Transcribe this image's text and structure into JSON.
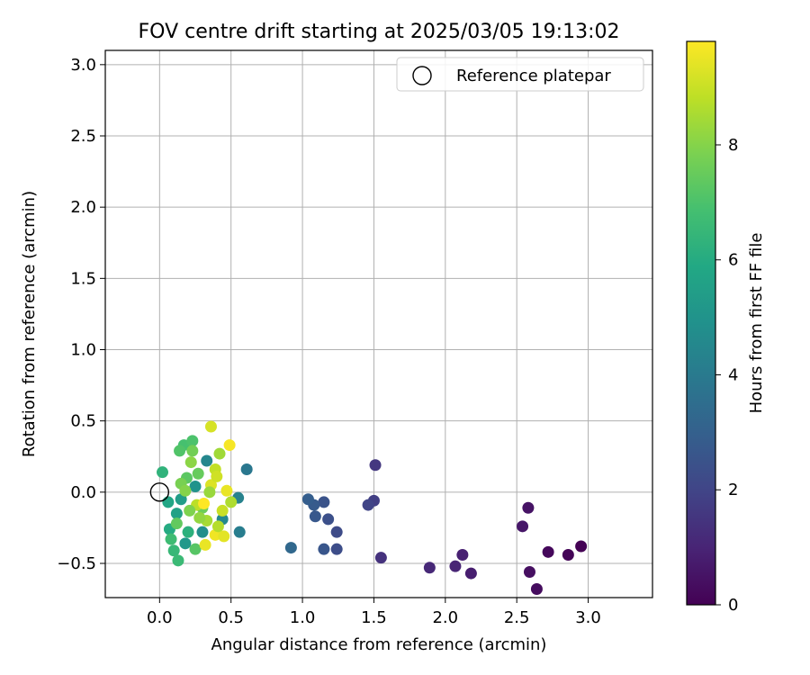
{
  "chart_data": {
    "type": "scatter",
    "title": "FOV centre drift starting at 2025/03/05 19:13:02",
    "xlabel": "Angular distance from reference (arcmin)",
    "ylabel": "Rotation from reference (arcmin)",
    "xlim": [
      -0.38,
      3.45
    ],
    "ylim": [
      -0.74,
      3.1
    ],
    "xticks": [
      0.0,
      0.5,
      1.0,
      1.5,
      2.0,
      2.5,
      3.0
    ],
    "xtick_labels": [
      "0.0",
      "0.5",
      "1.0",
      "1.5",
      "2.0",
      "2.5",
      "3.0"
    ],
    "yticks": [
      -0.5,
      0.0,
      0.5,
      1.0,
      1.5,
      2.0,
      2.5,
      3.0
    ],
    "ytick_labels": [
      "−0.5",
      "0.0",
      "0.5",
      "1.0",
      "1.5",
      "2.0",
      "2.5",
      "3.0"
    ],
    "grid": true,
    "legend": {
      "label": "Reference platepar",
      "placement": "top-right"
    },
    "reference": {
      "x": 0.0,
      "y": 0.0
    },
    "colorbar": {
      "label": "Hours from first FF file",
      "range": [
        0,
        9.8
      ],
      "ticks": [
        0,
        2,
        4,
        6,
        8
      ],
      "tick_labels": [
        "0",
        "2",
        "4",
        "6",
        "8"
      ],
      "colormap": "viridis"
    },
    "points": [
      {
        "x": 2.95,
        "y": -0.38,
        "t": 0.0
      },
      {
        "x": 2.86,
        "y": -0.44,
        "t": 0.1
      },
      {
        "x": 2.72,
        "y": -0.42,
        "t": 0.2
      },
      {
        "x": 2.64,
        "y": -0.68,
        "t": 0.3
      },
      {
        "x": 2.59,
        "y": -0.56,
        "t": 0.4
      },
      {
        "x": 2.58,
        "y": -0.11,
        "t": 0.5
      },
      {
        "x": 2.54,
        "y": -0.24,
        "t": 0.6
      },
      {
        "x": 2.18,
        "y": -0.57,
        "t": 0.8
      },
      {
        "x": 2.12,
        "y": -0.44,
        "t": 0.9
      },
      {
        "x": 2.07,
        "y": -0.52,
        "t": 1.0
      },
      {
        "x": 1.89,
        "y": -0.53,
        "t": 1.1
      },
      {
        "x": 1.55,
        "y": -0.46,
        "t": 1.4
      },
      {
        "x": 1.51,
        "y": 0.19,
        "t": 1.6
      },
      {
        "x": 1.5,
        "y": -0.06,
        "t": 1.8
      },
      {
        "x": 1.46,
        "y": -0.09,
        "t": 2.0
      },
      {
        "x": 1.24,
        "y": -0.28,
        "t": 2.2
      },
      {
        "x": 1.24,
        "y": -0.4,
        "t": 2.3
      },
      {
        "x": 1.18,
        "y": -0.19,
        "t": 2.4
      },
      {
        "x": 1.15,
        "y": -0.07,
        "t": 2.5
      },
      {
        "x": 1.15,
        "y": -0.4,
        "t": 2.6
      },
      {
        "x": 1.09,
        "y": -0.17,
        "t": 2.7
      },
      {
        "x": 1.08,
        "y": -0.09,
        "t": 2.8
      },
      {
        "x": 1.04,
        "y": -0.05,
        "t": 2.9
      },
      {
        "x": 0.92,
        "y": -0.39,
        "t": 3.3
      },
      {
        "x": 0.61,
        "y": 0.16,
        "t": 3.9
      },
      {
        "x": 0.56,
        "y": -0.28,
        "t": 4.1
      },
      {
        "x": 0.55,
        "y": -0.04,
        "t": 4.3
      },
      {
        "x": 0.33,
        "y": 0.22,
        "t": 4.5
      },
      {
        "x": 0.44,
        "y": -0.19,
        "t": 4.6
      },
      {
        "x": 0.3,
        "y": -0.28,
        "t": 4.8
      },
      {
        "x": 0.25,
        "y": 0.04,
        "t": 5.0
      },
      {
        "x": 0.18,
        "y": -0.36,
        "t": 5.2
      },
      {
        "x": 0.15,
        "y": -0.05,
        "t": 5.4
      },
      {
        "x": 0.12,
        "y": -0.15,
        "t": 5.6
      },
      {
        "x": 0.06,
        "y": -0.07,
        "t": 5.8
      },
      {
        "x": 0.07,
        "y": -0.26,
        "t": 6.0
      },
      {
        "x": 0.2,
        "y": -0.28,
        "t": 6.2
      },
      {
        "x": 0.02,
        "y": 0.14,
        "t": 6.3
      },
      {
        "x": 0.1,
        "y": -0.41,
        "t": 6.5
      },
      {
        "x": 0.13,
        "y": -0.48,
        "t": 6.6
      },
      {
        "x": 0.08,
        "y": -0.33,
        "t": 6.7
      },
      {
        "x": 0.17,
        "y": 0.33,
        "t": 6.9
      },
      {
        "x": 0.23,
        "y": 0.36,
        "t": 7.0
      },
      {
        "x": 0.14,
        "y": 0.29,
        "t": 7.1
      },
      {
        "x": 0.25,
        "y": -0.4,
        "t": 7.2
      },
      {
        "x": 0.19,
        "y": 0.1,
        "t": 7.3
      },
      {
        "x": 0.12,
        "y": -0.22,
        "t": 7.4
      },
      {
        "x": 0.27,
        "y": 0.13,
        "t": 7.5
      },
      {
        "x": 0.3,
        "y": -0.11,
        "t": 7.6
      },
      {
        "x": 0.23,
        "y": 0.29,
        "t": 7.7
      },
      {
        "x": 0.15,
        "y": 0.06,
        "t": 7.8
      },
      {
        "x": 0.36,
        "y": 0.46,
        "t": 9.2
      },
      {
        "x": 0.42,
        "y": 0.27,
        "t": 8.4
      },
      {
        "x": 0.33,
        "y": -0.2,
        "t": 8.5
      },
      {
        "x": 0.39,
        "y": 0.16,
        "t": 8.9
      },
      {
        "x": 0.5,
        "y": -0.07,
        "t": 8.6
      },
      {
        "x": 0.36,
        "y": 0.05,
        "t": 9.3
      },
      {
        "x": 0.39,
        "y": -0.3,
        "t": 9.6
      },
      {
        "x": 0.45,
        "y": -0.31,
        "t": 9.4
      },
      {
        "x": 0.44,
        "y": -0.13,
        "t": 9.0
      },
      {
        "x": 0.32,
        "y": -0.37,
        "t": 9.5
      },
      {
        "x": 0.49,
        "y": 0.33,
        "t": 9.7
      },
      {
        "x": 0.26,
        "y": -0.09,
        "t": 8.8
      },
      {
        "x": 0.35,
        "y": 0.0,
        "t": 8.3
      },
      {
        "x": 0.4,
        "y": 0.11,
        "t": 9.1
      },
      {
        "x": 0.47,
        "y": 0.01,
        "t": 9.5
      },
      {
        "x": 0.41,
        "y": -0.24,
        "t": 8.7
      },
      {
        "x": 0.31,
        "y": -0.08,
        "t": 9.8
      },
      {
        "x": 0.22,
        "y": 0.21,
        "t": 8.1
      },
      {
        "x": 0.28,
        "y": -0.18,
        "t": 8.2
      },
      {
        "x": 0.18,
        "y": 0.01,
        "t": 8.0
      },
      {
        "x": 0.21,
        "y": -0.13,
        "t": 7.9
      }
    ]
  }
}
